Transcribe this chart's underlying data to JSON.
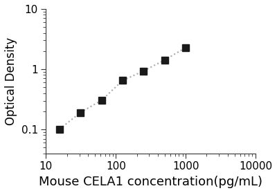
{
  "x_data": [
    15.625,
    31.25,
    62.5,
    125,
    250,
    500,
    1000
  ],
  "y_data": [
    0.101,
    0.191,
    0.305,
    0.648,
    0.935,
    1.42,
    2.28
  ],
  "xlim": [
    10,
    10000
  ],
  "ylim": [
    0.04,
    10
  ],
  "xlabel": "Mouse CELA1 concentration(pg/mL)",
  "ylabel": "Optical Density",
  "xticks": [
    10,
    100,
    1000,
    10000
  ],
  "yticks": [
    0.1,
    1,
    10
  ],
  "ytick_labels": [
    "0.1",
    "1",
    "10"
  ],
  "xtick_labels": [
    "10",
    "100",
    "1000",
    "10000"
  ],
  "marker": "s",
  "marker_color": "#1a1a1a",
  "line_color": "#aaaaaa",
  "line_style": ":",
  "line_width": 1.5,
  "marker_size": 7,
  "background_color": "#ffffff",
  "xlabel_fontsize": 13,
  "ylabel_fontsize": 12,
  "tick_fontsize": 11
}
